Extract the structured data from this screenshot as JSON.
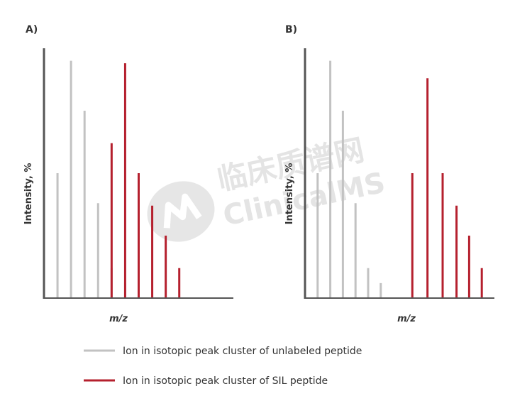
{
  "watermark": {
    "line1": "临床质谱网",
    "line2": "ClinicalMS"
  },
  "colors": {
    "unlabeled": "#c2c2c2",
    "sil": "#b5202e",
    "axis": "#555555"
  },
  "legend": [
    {
      "label": "Ion in isotopic peak cluster of unlabeled peptide",
      "series": "unlabeled"
    },
    {
      "label": "Ion in isotopic peak cluster of SIL peptide",
      "series": "sil"
    }
  ],
  "chart_data": [
    {
      "type": "bar",
      "panel": "A)",
      "xlabel": "m/z",
      "ylabel": "Intensity, %",
      "xlim": [
        0,
        14
      ],
      "ylim": [
        0,
        100
      ],
      "grid": false,
      "series": [
        {
          "name": "Ion in isotopic peak cluster of unlabeled peptide",
          "color": "unlabeled",
          "x": [
            1,
            2,
            3,
            4,
            5,
            6
          ],
          "values": [
            50,
            95,
            75,
            38,
            12,
            6
          ]
        },
        {
          "name": "Ion in isotopic peak cluster of SIL peptide",
          "color": "sil",
          "x": [
            5,
            6,
            7,
            8,
            9,
            10
          ],
          "values": [
            62,
            94,
            50,
            37,
            25,
            12
          ]
        }
      ]
    },
    {
      "type": "bar",
      "panel": "B)",
      "xlabel": "m/z",
      "ylabel": "Intensity, %",
      "xlim": [
        0,
        15
      ],
      "ylim": [
        0,
        100
      ],
      "grid": false,
      "series": [
        {
          "name": "Ion in isotopic peak cluster of unlabeled peptide",
          "color": "unlabeled",
          "x": [
            1,
            2,
            3,
            4,
            5,
            6
          ],
          "values": [
            50,
            95,
            75,
            38,
            12,
            6
          ]
        },
        {
          "name": "Ion in isotopic peak cluster of SIL peptide",
          "color": "sil",
          "x": [
            8.5,
            9.7,
            10.9,
            12.0,
            13.0,
            14.0
          ],
          "values": [
            50,
            88,
            50,
            37,
            25,
            12
          ]
        }
      ]
    }
  ]
}
